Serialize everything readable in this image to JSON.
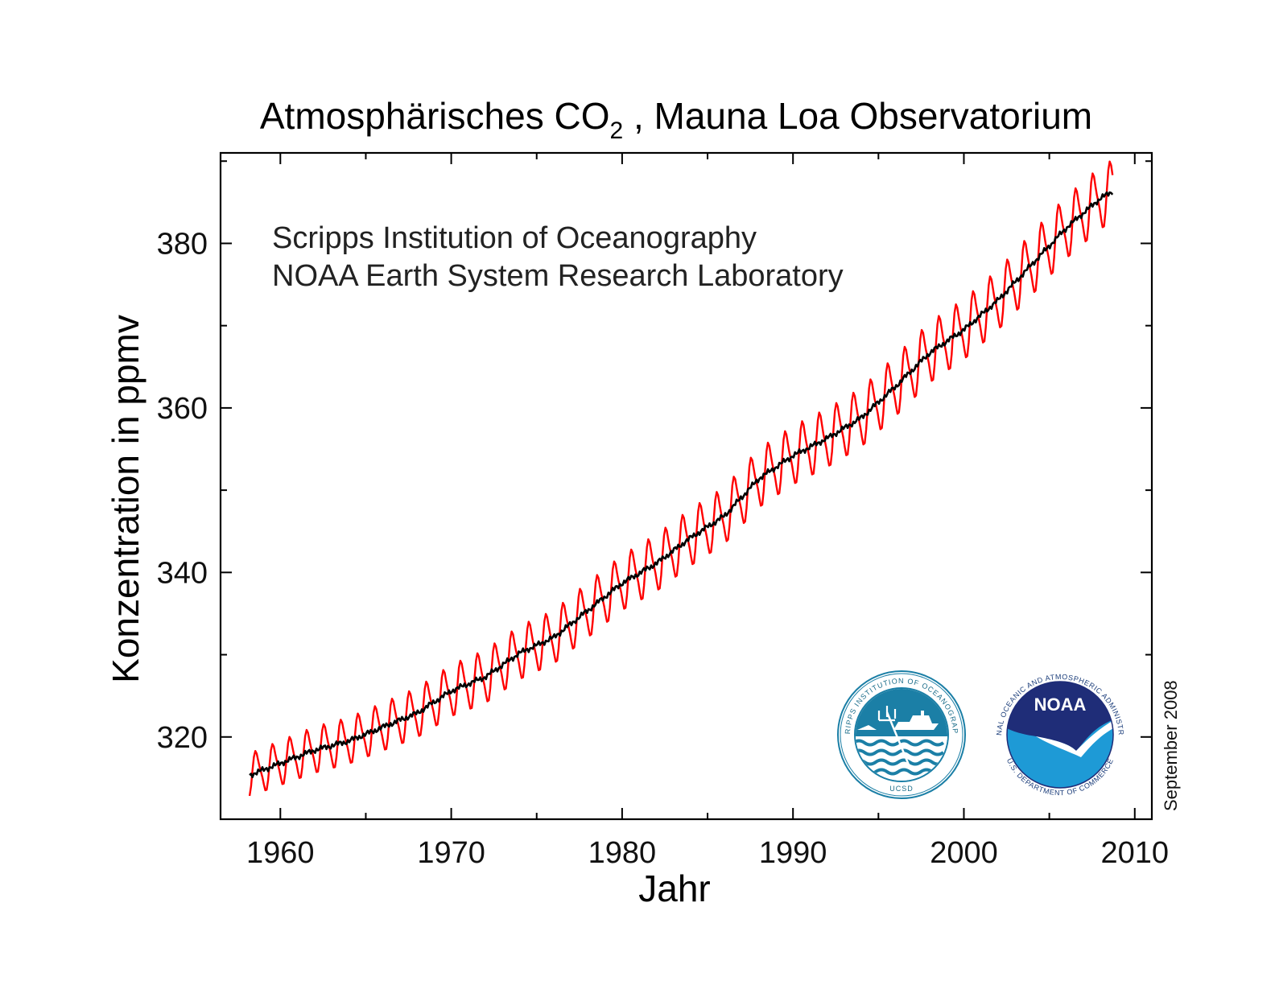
{
  "chart_data": {
    "type": "line",
    "title": "Atmosphärisches CO",
    "title_subscript": "2",
    "title_suffix": " , Mauna Loa Observatorium",
    "xlabel": "Jahr",
    "ylabel": "Konzentration in ppmv",
    "xlim": [
      1956.5,
      2011
    ],
    "ylim": [
      310,
      391
    ],
    "xticks": [
      1960,
      1970,
      1980,
      1990,
      2000,
      2010
    ],
    "xticks_minor": [
      1965,
      1975,
      1985,
      1995,
      2005
    ],
    "yticks": [
      320,
      340,
      360,
      380
    ],
    "yticks_minor": [
      330,
      350,
      370,
      390
    ],
    "grid": false,
    "annotations": [
      "Scripps Institution of Oceanography",
      "NOAA Earth System Research Laboratory"
    ],
    "date_note": "September 2008",
    "series": [
      {
        "color": "#ff0000",
        "kind": "monthly",
        "x": [
          1958.0,
          1960.0,
          1962.0,
          1964.0,
          1966.0,
          1968.0,
          1970.0,
          1972.0,
          1974.0,
          1976.0,
          1978.0,
          1980.0,
          1982.0,
          1984.0,
          1986.0,
          1988.0,
          1990.0,
          1992.0,
          1994.0,
          1996.0,
          1998.0,
          2000.0,
          2002.0,
          2004.0,
          2006.0,
          2008.0,
          2008.7
        ],
        "values": [
          315.2,
          316.8,
          318.4,
          319.5,
          321.2,
          322.9,
          325.6,
          327.3,
          330.2,
          332.1,
          335.4,
          338.7,
          341.1,
          344.2,
          346.9,
          351.4,
          354.2,
          356.3,
          358.8,
          362.6,
          366.7,
          369.5,
          373.1,
          377.5,
          381.9,
          385.5,
          386.3
        ],
        "seasonal_amplitude": [
          2.4,
          2.5,
          2.6,
          2.6,
          2.7,
          2.8,
          2.9,
          3.0,
          3.0,
          3.0,
          3.1,
          3.1,
          3.2,
          3.2,
          3.2,
          3.3,
          3.3,
          3.3,
          3.3,
          3.4,
          3.4,
          3.4,
          3.4,
          3.5,
          3.5,
          3.5,
          3.5
        ]
      },
      {
        "color": "#000000",
        "kind": "seasonally adjusted",
        "x": [
          1958.0,
          1960.0,
          1962.0,
          1964.0,
          1966.0,
          1968.0,
          1970.0,
          1972.0,
          1974.0,
          1976.0,
          1978.0,
          1980.0,
          1982.0,
          1984.0,
          1986.0,
          1988.0,
          1990.0,
          1992.0,
          1994.0,
          1996.0,
          1998.0,
          2000.0,
          2002.0,
          2004.0,
          2006.0,
          2008.0,
          2008.7
        ],
        "values": [
          315.2,
          316.8,
          318.4,
          319.5,
          321.2,
          322.9,
          325.6,
          327.3,
          330.2,
          332.1,
          335.4,
          338.7,
          341.1,
          344.2,
          346.9,
          351.4,
          354.2,
          356.3,
          358.8,
          362.6,
          366.7,
          369.5,
          373.1,
          377.5,
          381.9,
          385.5,
          386.3
        ]
      }
    ]
  },
  "logos": {
    "scripps": {
      "ring_text": "SCRIPPS INSTITUTION OF OCEANOGRAPHY",
      "bottom_text": "UCSD",
      "color": "#1b7fa6"
    },
    "noaa": {
      "ring_text": "NATIONAL OCEANIC AND ATMOSPHERIC ADMINISTRATION",
      "bottom_text": "U.S. DEPARTMENT OF COMMERCE",
      "center_text": "NOAA",
      "color_dark": "#1f2d78",
      "color_light": "#1e9ad6"
    }
  }
}
